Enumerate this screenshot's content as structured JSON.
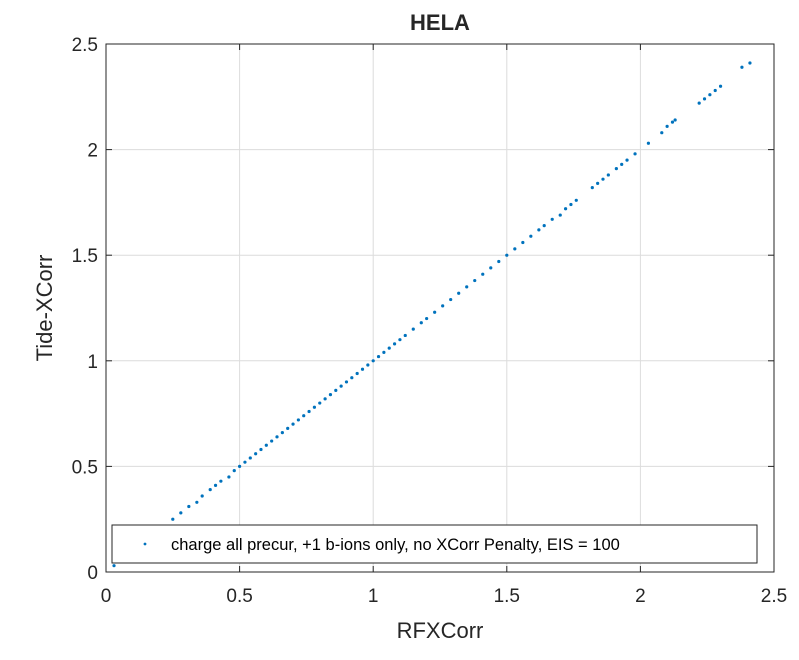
{
  "chart_data": {
    "type": "scatter",
    "title": "HELA",
    "xlabel": "RFXCorr",
    "ylabel": "Tide-XCorr",
    "xlim": [
      0,
      2.5
    ],
    "ylim": [
      0,
      2.5
    ],
    "xticks": [
      "0",
      "0.5",
      "1",
      "1.5",
      "2",
      "2.5"
    ],
    "yticks": [
      "0",
      "0.5",
      "1",
      "1.5",
      "2",
      "2.5"
    ],
    "grid": true,
    "legend_position": "bottom",
    "series": [
      {
        "name": "charge all precur, +1 b-ions only, no XCorr Penalty, EIS = 100",
        "color": "#0072bd",
        "points": [
          [
            0.03,
            0.03
          ],
          [
            0.05,
            0.05
          ],
          [
            0.07,
            0.07
          ],
          [
            0.12,
            0.12
          ],
          [
            0.25,
            0.25
          ],
          [
            0.28,
            0.28
          ],
          [
            0.31,
            0.31
          ],
          [
            0.34,
            0.33
          ],
          [
            0.36,
            0.36
          ],
          [
            0.39,
            0.39
          ],
          [
            0.41,
            0.41
          ],
          [
            0.43,
            0.43
          ],
          [
            0.46,
            0.45
          ],
          [
            0.48,
            0.48
          ],
          [
            0.5,
            0.5
          ],
          [
            0.52,
            0.52
          ],
          [
            0.54,
            0.54
          ],
          [
            0.56,
            0.56
          ],
          [
            0.58,
            0.58
          ],
          [
            0.6,
            0.6
          ],
          [
            0.62,
            0.62
          ],
          [
            0.64,
            0.64
          ],
          [
            0.66,
            0.66
          ],
          [
            0.68,
            0.68
          ],
          [
            0.7,
            0.7
          ],
          [
            0.72,
            0.72
          ],
          [
            0.74,
            0.74
          ],
          [
            0.76,
            0.76
          ],
          [
            0.78,
            0.78
          ],
          [
            0.8,
            0.8
          ],
          [
            0.82,
            0.82
          ],
          [
            0.84,
            0.84
          ],
          [
            0.86,
            0.86
          ],
          [
            0.88,
            0.88
          ],
          [
            0.9,
            0.9
          ],
          [
            0.92,
            0.92
          ],
          [
            0.94,
            0.94
          ],
          [
            0.96,
            0.96
          ],
          [
            0.98,
            0.98
          ],
          [
            1.0,
            1.0
          ],
          [
            1.02,
            1.02
          ],
          [
            1.04,
            1.04
          ],
          [
            1.06,
            1.06
          ],
          [
            1.08,
            1.08
          ],
          [
            1.1,
            1.1
          ],
          [
            1.12,
            1.12
          ],
          [
            1.15,
            1.15
          ],
          [
            1.18,
            1.18
          ],
          [
            1.2,
            1.2
          ],
          [
            1.23,
            1.23
          ],
          [
            1.26,
            1.26
          ],
          [
            1.29,
            1.29
          ],
          [
            1.32,
            1.32
          ],
          [
            1.35,
            1.35
          ],
          [
            1.38,
            1.38
          ],
          [
            1.41,
            1.41
          ],
          [
            1.44,
            1.44
          ],
          [
            1.47,
            1.47
          ],
          [
            1.5,
            1.5
          ],
          [
            1.53,
            1.53
          ],
          [
            1.56,
            1.56
          ],
          [
            1.59,
            1.59
          ],
          [
            1.62,
            1.62
          ],
          [
            1.64,
            1.64
          ],
          [
            1.67,
            1.67
          ],
          [
            1.7,
            1.69
          ],
          [
            1.72,
            1.72
          ],
          [
            1.74,
            1.74
          ],
          [
            1.76,
            1.76
          ],
          [
            1.82,
            1.82
          ],
          [
            1.84,
            1.84
          ],
          [
            1.86,
            1.86
          ],
          [
            1.88,
            1.88
          ],
          [
            1.91,
            1.91
          ],
          [
            1.93,
            1.93
          ],
          [
            1.95,
            1.95
          ],
          [
            1.98,
            1.98
          ],
          [
            2.03,
            2.03
          ],
          [
            2.08,
            2.08
          ],
          [
            2.1,
            2.11
          ],
          [
            2.12,
            2.13
          ],
          [
            2.13,
            2.14
          ],
          [
            2.22,
            2.22
          ],
          [
            2.24,
            2.24
          ],
          [
            2.26,
            2.26
          ],
          [
            2.28,
            2.28
          ],
          [
            2.3,
            2.3
          ],
          [
            2.38,
            2.39
          ],
          [
            2.41,
            2.41
          ]
        ]
      }
    ]
  }
}
